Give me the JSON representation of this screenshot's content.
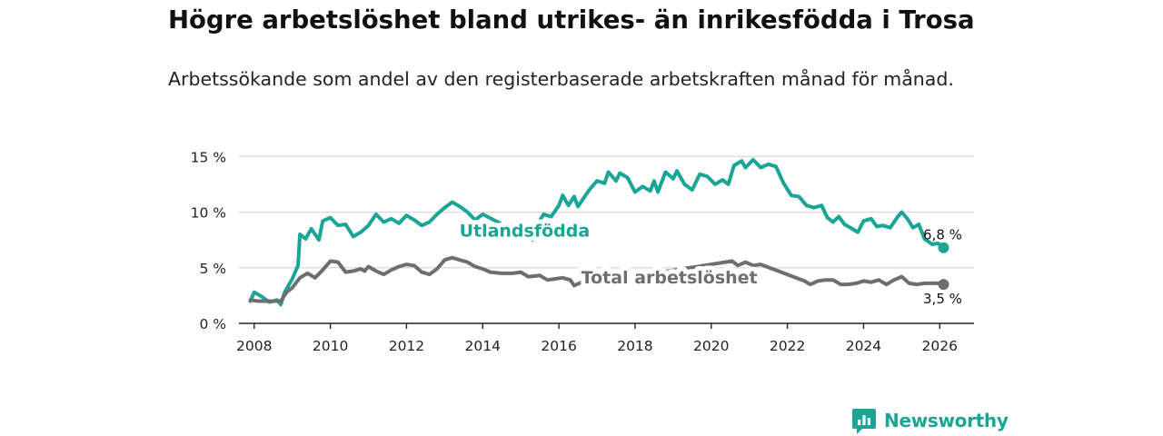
{
  "title": "Högre arbetslöshet bland utrikes- än inrikesfödda i Trosa",
  "subtitle": "Arbetssökande som andel av den registerbaserade arbetskraften månad för månad.",
  "brand": {
    "name": "Newsworthy",
    "color": "#1aa594"
  },
  "colors": {
    "foreign": "#1aa594",
    "total": "#6e6d72",
    "grid": "#d9d9d9",
    "axis": "#222222"
  },
  "chart_data": {
    "type": "line",
    "title": "Högre arbetslöshet bland utrikes- än inrikesfödda i Trosa",
    "xlabel": "",
    "ylabel": "",
    "xlim": [
      2007.6,
      2026.9
    ],
    "ylim": [
      0,
      16
    ],
    "yticks": [
      0,
      5,
      10,
      15
    ],
    "ytick_labels": [
      "0 %",
      "5 %",
      "10 %",
      "15 %"
    ],
    "xticks": [
      2008,
      2010,
      2012,
      2014,
      2016,
      2018,
      2020,
      2022,
      2024,
      2026
    ],
    "xtick_labels": [
      "2008",
      "2010",
      "2012",
      "2014",
      "2016",
      "2018",
      "2020",
      "2022",
      "2024",
      "2026"
    ],
    "grid": true,
    "series": [
      {
        "name": "Utlandsfödda",
        "color": "#1aa594",
        "end_label": "6,8 %",
        "end_value": 6.8,
        "points": [
          [
            2007.9,
            2.0
          ],
          [
            2008.0,
            2.8
          ],
          [
            2008.2,
            2.4
          ],
          [
            2008.4,
            1.9
          ],
          [
            2008.6,
            2.1
          ],
          [
            2008.7,
            1.7
          ],
          [
            2008.8,
            2.8
          ],
          [
            2009.0,
            4.0
          ],
          [
            2009.15,
            5.2
          ],
          [
            2009.2,
            8.0
          ],
          [
            2009.35,
            7.6
          ],
          [
            2009.5,
            8.5
          ],
          [
            2009.7,
            7.5
          ],
          [
            2009.8,
            9.2
          ],
          [
            2010.0,
            9.5
          ],
          [
            2010.2,
            8.8
          ],
          [
            2010.4,
            8.9
          ],
          [
            2010.6,
            7.8
          ],
          [
            2010.8,
            8.2
          ],
          [
            2011.0,
            8.8
          ],
          [
            2011.2,
            9.8
          ],
          [
            2011.4,
            9.1
          ],
          [
            2011.6,
            9.4
          ],
          [
            2011.8,
            9.0
          ],
          [
            2012.0,
            9.7
          ],
          [
            2012.2,
            9.3
          ],
          [
            2012.4,
            8.8
          ],
          [
            2012.6,
            9.1
          ],
          [
            2012.8,
            9.8
          ],
          [
            2013.0,
            10.4
          ],
          [
            2013.2,
            10.9
          ],
          [
            2013.4,
            10.5
          ],
          [
            2013.6,
            10.0
          ],
          [
            2013.8,
            9.3
          ],
          [
            2014.0,
            9.8
          ],
          [
            2015.3,
            7.5
          ],
          [
            2015.4,
            8.7
          ],
          [
            2015.6,
            9.8
          ],
          [
            2015.8,
            9.6
          ],
          [
            2016.0,
            10.6
          ],
          [
            2016.1,
            11.5
          ],
          [
            2016.25,
            10.6
          ],
          [
            2016.4,
            11.4
          ],
          [
            2016.5,
            10.5
          ],
          [
            2016.6,
            11.0
          ],
          [
            2016.8,
            12.0
          ],
          [
            2017.0,
            12.8
          ],
          [
            2017.2,
            12.6
          ],
          [
            2017.3,
            13.6
          ],
          [
            2017.5,
            12.8
          ],
          [
            2017.6,
            13.5
          ],
          [
            2017.8,
            13.1
          ],
          [
            2018.0,
            11.8
          ],
          [
            2018.2,
            12.3
          ],
          [
            2018.4,
            11.9
          ],
          [
            2018.5,
            12.8
          ],
          [
            2018.6,
            11.8
          ],
          [
            2018.8,
            13.6
          ],
          [
            2019.0,
            13.0
          ],
          [
            2019.1,
            13.7
          ],
          [
            2019.3,
            12.5
          ],
          [
            2019.5,
            12.0
          ],
          [
            2019.7,
            13.4
          ],
          [
            2019.9,
            13.2
          ],
          [
            2020.1,
            12.5
          ],
          [
            2020.3,
            12.9
          ],
          [
            2020.45,
            12.5
          ],
          [
            2020.6,
            14.2
          ],
          [
            2020.8,
            14.6
          ],
          [
            2020.9,
            14.0
          ],
          [
            2021.1,
            14.7
          ],
          [
            2021.3,
            14.0
          ],
          [
            2021.5,
            14.3
          ],
          [
            2021.7,
            14.1
          ],
          [
            2021.9,
            12.6
          ],
          [
            2022.1,
            11.5
          ],
          [
            2022.3,
            11.4
          ],
          [
            2022.5,
            10.6
          ],
          [
            2022.7,
            10.4
          ],
          [
            2022.9,
            10.6
          ],
          [
            2023.05,
            9.5
          ],
          [
            2023.2,
            9.1
          ],
          [
            2023.35,
            9.6
          ],
          [
            2023.5,
            8.9
          ],
          [
            2023.7,
            8.5
          ],
          [
            2023.85,
            8.2
          ],
          [
            2024.0,
            9.2
          ],
          [
            2024.2,
            9.4
          ],
          [
            2024.35,
            8.7
          ],
          [
            2024.5,
            8.8
          ],
          [
            2024.7,
            8.6
          ],
          [
            2024.9,
            9.6
          ],
          [
            2025.0,
            10.0
          ],
          [
            2025.15,
            9.4
          ],
          [
            2025.3,
            8.6
          ],
          [
            2025.45,
            8.9
          ],
          [
            2025.6,
            7.6
          ],
          [
            2025.8,
            7.1
          ],
          [
            2025.95,
            7.2
          ],
          [
            2026.1,
            6.8
          ]
        ]
      },
      {
        "name": "Total arbetslöshet",
        "color": "#6e6d72",
        "end_label": "3,5 %",
        "end_value": 3.5,
        "points": [
          [
            2007.9,
            2.1
          ],
          [
            2008.1,
            2.0
          ],
          [
            2008.3,
            2.0
          ],
          [
            2008.5,
            2.0
          ],
          [
            2008.7,
            2.0
          ],
          [
            2008.85,
            2.8
          ],
          [
            2009.0,
            3.2
          ],
          [
            2009.2,
            4.1
          ],
          [
            2009.4,
            4.5
          ],
          [
            2009.6,
            4.1
          ],
          [
            2009.8,
            4.8
          ],
          [
            2010.0,
            5.6
          ],
          [
            2010.2,
            5.5
          ],
          [
            2010.4,
            4.6
          ],
          [
            2010.6,
            4.7
          ],
          [
            2010.8,
            4.9
          ],
          [
            2010.9,
            4.7
          ],
          [
            2011.0,
            5.1
          ],
          [
            2011.2,
            4.7
          ],
          [
            2011.4,
            4.4
          ],
          [
            2011.6,
            4.8
          ],
          [
            2011.8,
            5.1
          ],
          [
            2012.0,
            5.3
          ],
          [
            2012.2,
            5.2
          ],
          [
            2012.4,
            4.6
          ],
          [
            2012.6,
            4.4
          ],
          [
            2012.8,
            4.9
          ],
          [
            2013.0,
            5.7
          ],
          [
            2013.2,
            5.9
          ],
          [
            2013.4,
            5.7
          ],
          [
            2013.6,
            5.5
          ],
          [
            2013.8,
            5.1
          ],
          [
            2014.0,
            4.9
          ],
          [
            2014.2,
            4.6
          ],
          [
            2014.5,
            4.5
          ],
          [
            2014.8,
            4.5
          ],
          [
            2015.0,
            4.6
          ],
          [
            2015.2,
            4.2
          ],
          [
            2015.5,
            4.3
          ],
          [
            2015.7,
            3.9
          ],
          [
            2015.9,
            4.0
          ],
          [
            2016.1,
            4.1
          ],
          [
            2016.3,
            3.9
          ],
          [
            2016.4,
            3.4
          ],
          [
            2016.6,
            3.7
          ],
          [
            2016.8,
            4.0
          ],
          [
            2017.0,
            4.3
          ],
          [
            2017.2,
            4.0
          ],
          [
            2017.4,
            4.1
          ],
          [
            2017.6,
            4.0
          ],
          [
            2020.55,
            5.6
          ],
          [
            2020.7,
            5.2
          ],
          [
            2020.9,
            5.5
          ],
          [
            2021.1,
            5.2
          ],
          [
            2021.3,
            5.3
          ],
          [
            2022.45,
            3.8
          ],
          [
            2022.6,
            3.5
          ],
          [
            2022.8,
            3.8
          ],
          [
            2023.0,
            3.9
          ],
          [
            2023.2,
            3.9
          ],
          [
            2023.4,
            3.5
          ],
          [
            2023.6,
            3.5
          ],
          [
            2023.8,
            3.6
          ],
          [
            2024.0,
            3.8
          ],
          [
            2024.2,
            3.7
          ],
          [
            2024.4,
            3.9
          ],
          [
            2024.6,
            3.5
          ],
          [
            2024.8,
            3.9
          ],
          [
            2025.0,
            4.2
          ],
          [
            2025.2,
            3.6
          ],
          [
            2025.4,
            3.5
          ],
          [
            2025.6,
            3.6
          ],
          [
            2025.8,
            3.6
          ],
          [
            2025.95,
            3.6
          ],
          [
            2026.1,
            3.5
          ]
        ]
      }
    ],
    "annotations": [
      {
        "text": "Utlandsfödda",
        "series": "Utlandsfödda",
        "x": 2015.1,
        "y": 8.3
      },
      {
        "text": "Total arbetslöshet",
        "series": "Total arbetslöshet",
        "x": 2018.9,
        "y": 4.1
      }
    ]
  }
}
